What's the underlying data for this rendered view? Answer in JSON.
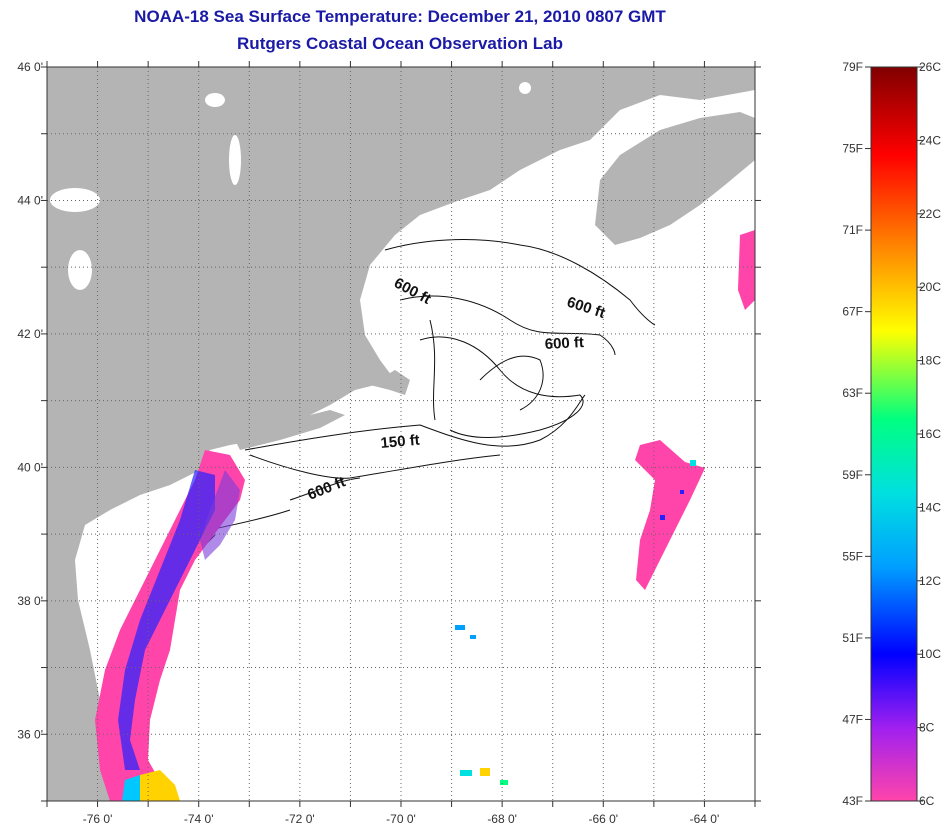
{
  "title_line1": "NOAA-18 Sea Surface Temperature:  December 21, 2010 0807 GMT",
  "title_line2": "Rutgers Coastal Ocean Observation Lab",
  "map": {
    "lon_range": [
      -77,
      -63
    ],
    "lat_range": [
      35,
      46
    ],
    "lon_ticks": [
      {
        "v": -76,
        "label": "-76 0'"
      },
      {
        "v": -74,
        "label": "-74 0'"
      },
      {
        "v": -72,
        "label": "-72 0'"
      },
      {
        "v": -70,
        "label": "-70 0'"
      },
      {
        "v": -68,
        "label": "-68 0'"
      },
      {
        "v": -66,
        "label": "-66 0'"
      },
      {
        "v": -64,
        "label": "-64 0'"
      }
    ],
    "lat_ticks": [
      {
        "v": 46,
        "label": "46 0'"
      },
      {
        "v": 44,
        "label": "44 0'"
      },
      {
        "v": 42,
        "label": "42 0'"
      },
      {
        "v": 40,
        "label": "40 0'"
      },
      {
        "v": 38,
        "label": "38 0'"
      },
      {
        "v": 36,
        "label": "36 0'"
      }
    ],
    "contour_labels": [
      {
        "text": "600 ft",
        "lon": -70.3,
        "lat": 42.8
      },
      {
        "text": "600 ft",
        "lon": -66.8,
        "lat": 42.5
      },
      {
        "text": "600 ft",
        "lon": -67.0,
        "lat": 42.0
      },
      {
        "text": "150 ft",
        "lon": -70.3,
        "lat": 40.6
      },
      {
        "text": "600 ft",
        "lon": -72.1,
        "lat": 39.9
      }
    ],
    "land_color": "#b4b4b4"
  },
  "colorbar": {
    "f_labels": [
      "79F",
      "75F",
      "71F",
      "67F",
      "63F",
      "59F",
      "55F",
      "51F",
      "47F",
      "43F"
    ],
    "c_labels": [
      "26C",
      "24C",
      "22C",
      "20C",
      "18C",
      "16C",
      "14C",
      "12C",
      "10C",
      "8C",
      "6C"
    ],
    "f_range": [
      43,
      79
    ],
    "c_range": [
      6,
      26
    ],
    "colors": [
      "#ff44aa",
      "#a020f0",
      "#0000ff",
      "#00a0ff",
      "#00e0e0",
      "#00ff80",
      "#ffff00",
      "#ff8000",
      "#ff0000",
      "#800000"
    ]
  }
}
